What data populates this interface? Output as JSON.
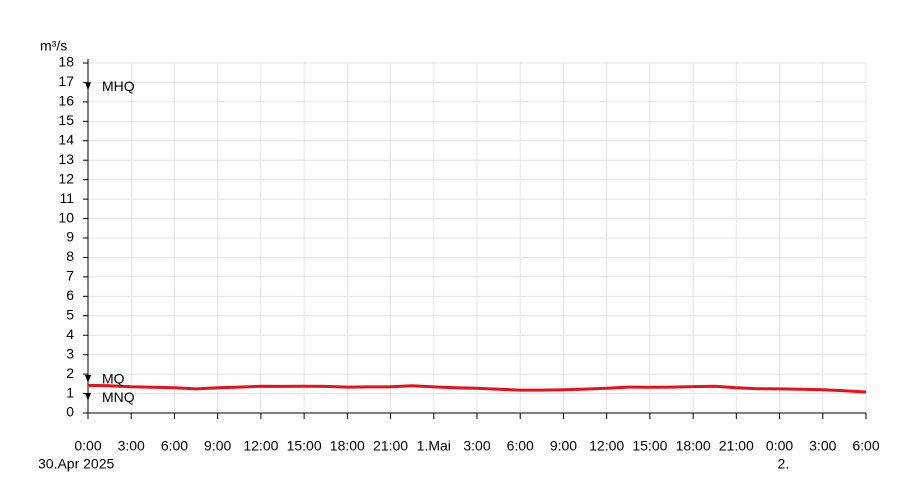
{
  "chart_data": {
    "type": "line",
    "y_unit": "m³/s",
    "x": [
      0,
      1.5,
      3,
      4.5,
      6,
      7.5,
      9,
      10.5,
      12,
      13.5,
      15,
      16.5,
      18,
      19.5,
      21,
      22.5,
      24,
      25.5,
      27,
      28.5,
      30,
      31.5,
      33,
      34.5,
      36,
      37.5,
      39,
      40.5,
      42,
      43.5,
      45,
      46.5,
      48,
      49.5,
      51,
      52.5,
      54
    ],
    "series": [
      {
        "color": "#e8101a",
        "values": [
          1.42,
          1.4,
          1.35,
          1.32,
          1.3,
          1.24,
          1.3,
          1.33,
          1.38,
          1.37,
          1.38,
          1.37,
          1.33,
          1.34,
          1.35,
          1.4,
          1.34,
          1.3,
          1.27,
          1.22,
          1.18,
          1.18,
          1.2,
          1.23,
          1.27,
          1.33,
          1.32,
          1.33,
          1.36,
          1.38,
          1.3,
          1.25,
          1.24,
          1.22,
          1.2,
          1.14,
          1.08
        ]
      }
    ],
    "xlim": [
      0,
      54
    ],
    "xticks": [
      {
        "value": 0,
        "label": "0:00"
      },
      {
        "value": 3,
        "label": "3:00"
      },
      {
        "value": 6,
        "label": "6:00"
      },
      {
        "value": 9,
        "label": "9:00"
      },
      {
        "value": 12,
        "label": "12:00"
      },
      {
        "value": 15,
        "label": "15:00"
      },
      {
        "value": 18,
        "label": "18:00"
      },
      {
        "value": 21,
        "label": "21:00"
      },
      {
        "value": 24,
        "label": "1.Mai"
      },
      {
        "value": 27,
        "label": "3:00"
      },
      {
        "value": 30,
        "label": "6:00"
      },
      {
        "value": 33,
        "label": "9:00"
      },
      {
        "value": 36,
        "label": "12:00"
      },
      {
        "value": 39,
        "label": "15:00"
      },
      {
        "value": 42,
        "label": "18:00"
      },
      {
        "value": 45,
        "label": "21:00"
      },
      {
        "value": 48,
        "label": "0:00"
      },
      {
        "value": 51,
        "label": "3:00"
      },
      {
        "value": 54,
        "label": "6:00"
      }
    ],
    "xticks_date": [
      {
        "value": 0,
        "label": "30.Apr 2025"
      },
      {
        "value": 48,
        "label": "2."
      }
    ],
    "ylim": [
      0,
      18
    ],
    "yticks": [
      0,
      1,
      2,
      3,
      4,
      5,
      6,
      7,
      8,
      9,
      10,
      11,
      12,
      13,
      14,
      15,
      16,
      17,
      18
    ],
    "grid": true,
    "annotations": [
      {
        "label": "MHQ",
        "value": 16.8
      },
      {
        "label": "MQ",
        "value": 1.75
      },
      {
        "label": "MNQ",
        "value": 0.82
      }
    ]
  }
}
